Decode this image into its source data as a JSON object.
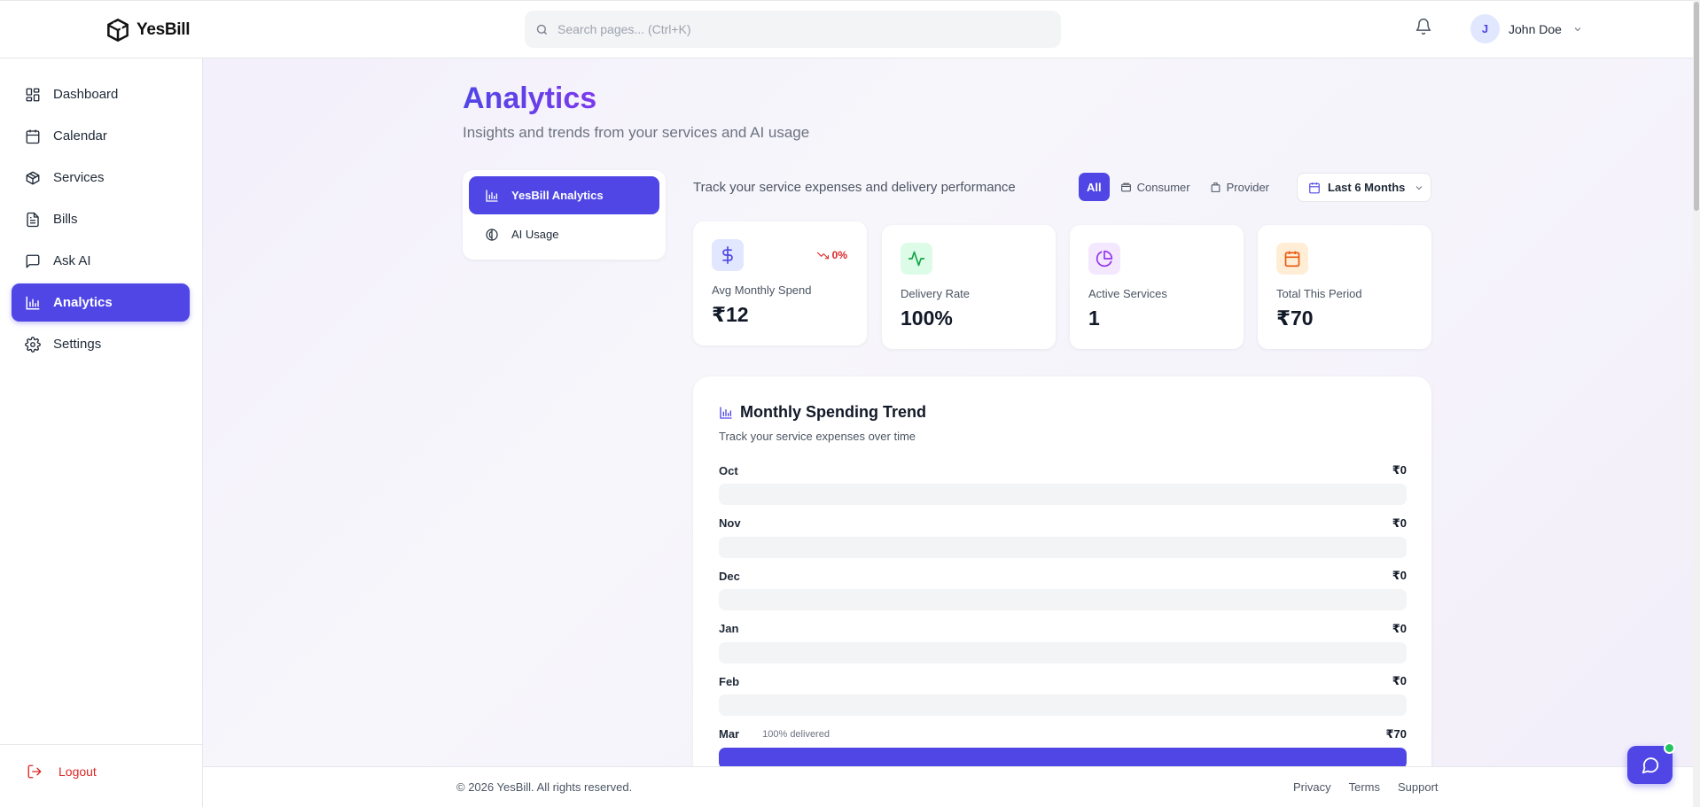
{
  "brand": {
    "name": "YesBill"
  },
  "search": {
    "placeholder": "Search pages... (Ctrl+K)"
  },
  "user": {
    "initial": "J",
    "name": "John Doe"
  },
  "sidebar": {
    "items": [
      {
        "label": "Dashboard",
        "icon": "dashboard-icon"
      },
      {
        "label": "Calendar",
        "icon": "calendar-icon"
      },
      {
        "label": "Services",
        "icon": "box-icon"
      },
      {
        "label": "Bills",
        "icon": "document-icon"
      },
      {
        "label": "Ask AI",
        "icon": "message-icon"
      },
      {
        "label": "Analytics",
        "icon": "bar-chart-icon",
        "active": true
      },
      {
        "label": "Settings",
        "icon": "gear-icon"
      }
    ],
    "logout_label": "Logout"
  },
  "page": {
    "title": "Analytics",
    "subtitle": "Insights and trends from your services and AI usage"
  },
  "tabs": [
    {
      "label": "YesBill Analytics",
      "active": true
    },
    {
      "label": "AI Usage",
      "active": false
    }
  ],
  "filters": {
    "description": "Track your service expenses and delivery performance",
    "options": [
      {
        "label": "All",
        "active": true
      },
      {
        "label": "Consumer",
        "active": false
      },
      {
        "label": "Provider",
        "active": false
      }
    ],
    "period": "Last 6 Months"
  },
  "stats": [
    {
      "label": "Avg Monthly Spend",
      "value": "₹12",
      "trend": "0%",
      "icon": "dollar-icon",
      "color": "#4f46e5",
      "bg": "#e0e7ff"
    },
    {
      "label": "Delivery Rate",
      "value": "100%",
      "icon": "activity-icon",
      "color": "#16a34a",
      "bg": "#dcfce7"
    },
    {
      "label": "Active Services",
      "value": "1",
      "icon": "pie-chart-icon",
      "color": "#9333ea",
      "bg": "#f3e8ff"
    },
    {
      "label": "Total This Period",
      "value": "₹70",
      "icon": "calendar-icon",
      "color": "#ea580c",
      "bg": "#ffedd5"
    }
  ],
  "trend_card": {
    "title": "Monthly Spending Trend",
    "subtitle": "Track your service expenses over time",
    "rows": [
      {
        "month": "Oct",
        "amount": "₹0",
        "fill": 0,
        "note": ""
      },
      {
        "month": "Nov",
        "amount": "₹0",
        "fill": 0,
        "note": ""
      },
      {
        "month": "Dec",
        "amount": "₹0",
        "fill": 0,
        "note": ""
      },
      {
        "month": "Jan",
        "amount": "₹0",
        "fill": 0,
        "note": ""
      },
      {
        "month": "Feb",
        "amount": "₹0",
        "fill": 0,
        "note": ""
      },
      {
        "month": "Mar",
        "amount": "₹70",
        "fill": 1,
        "note": "100% delivered"
      }
    ]
  },
  "footer": {
    "copyright": "© 2026 YesBill. All rights reserved.",
    "links": [
      "Privacy",
      "Terms",
      "Support"
    ]
  },
  "colors": {
    "accent": "#4f46e5",
    "danger": "#dc2626"
  }
}
